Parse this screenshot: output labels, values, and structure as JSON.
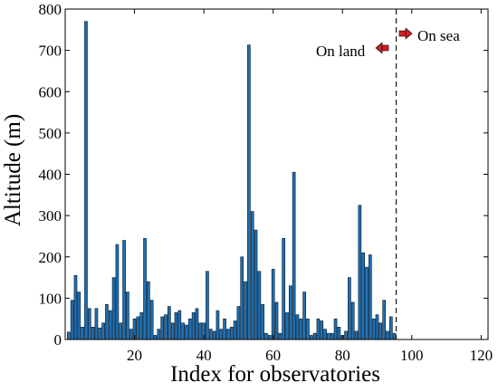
{
  "chart_data": {
    "type": "bar",
    "xlabel": "Index for observatories",
    "ylabel": "Altitude (m)",
    "xlim": [
      0,
      122
    ],
    "ylim": [
      0,
      800
    ],
    "xticks": [
      20,
      40,
      60,
      80,
      100,
      120
    ],
    "yticks": [
      0,
      100,
      200,
      300,
      400,
      500,
      600,
      700,
      800
    ],
    "grid": false,
    "bar_color": "#1f6fb2",
    "bar_edge_color": "#0a1a2a",
    "divider": {
      "x": 95.5,
      "style": "dashed"
    },
    "annotations": [
      {
        "text": "On land",
        "arrow_direction": "left"
      },
      {
        "text": "On sea",
        "arrow_direction": "right"
      }
    ],
    "arrow_color": "#d61f1f",
    "x": [
      1,
      2,
      3,
      4,
      5,
      6,
      7,
      8,
      9,
      10,
      11,
      12,
      13,
      14,
      15,
      16,
      17,
      18,
      19,
      20,
      21,
      22,
      23,
      24,
      25,
      26,
      27,
      28,
      29,
      30,
      31,
      32,
      33,
      34,
      35,
      36,
      37,
      38,
      39,
      40,
      41,
      42,
      43,
      44,
      45,
      46,
      47,
      48,
      49,
      50,
      51,
      52,
      53,
      54,
      55,
      56,
      57,
      58,
      59,
      60,
      61,
      62,
      63,
      64,
      65,
      66,
      67,
      68,
      69,
      70,
      71,
      72,
      73,
      74,
      75,
      76,
      77,
      78,
      79,
      80,
      81,
      82,
      83,
      84,
      85,
      86,
      87,
      88,
      89,
      90,
      91,
      92,
      93,
      94,
      95
    ],
    "values": [
      18,
      95,
      155,
      115,
      30,
      770,
      75,
      30,
      75,
      28,
      40,
      85,
      70,
      150,
      230,
      40,
      240,
      115,
      25,
      50,
      55,
      65,
      245,
      140,
      95,
      10,
      25,
      55,
      60,
      80,
      40,
      65,
      70,
      40,
      35,
      50,
      65,
      75,
      40,
      40,
      165,
      25,
      20,
      70,
      25,
      50,
      25,
      30,
      45,
      80,
      200,
      140,
      713,
      310,
      265,
      165,
      85,
      15,
      10,
      170,
      90,
      15,
      245,
      65,
      130,
      405,
      60,
      50,
      115,
      50,
      10,
      15,
      50,
      45,
      25,
      15,
      15,
      50,
      30,
      10,
      20,
      150,
      90,
      20,
      325,
      210,
      175,
      205,
      50,
      60,
      40,
      95,
      20,
      55,
      15
    ]
  }
}
